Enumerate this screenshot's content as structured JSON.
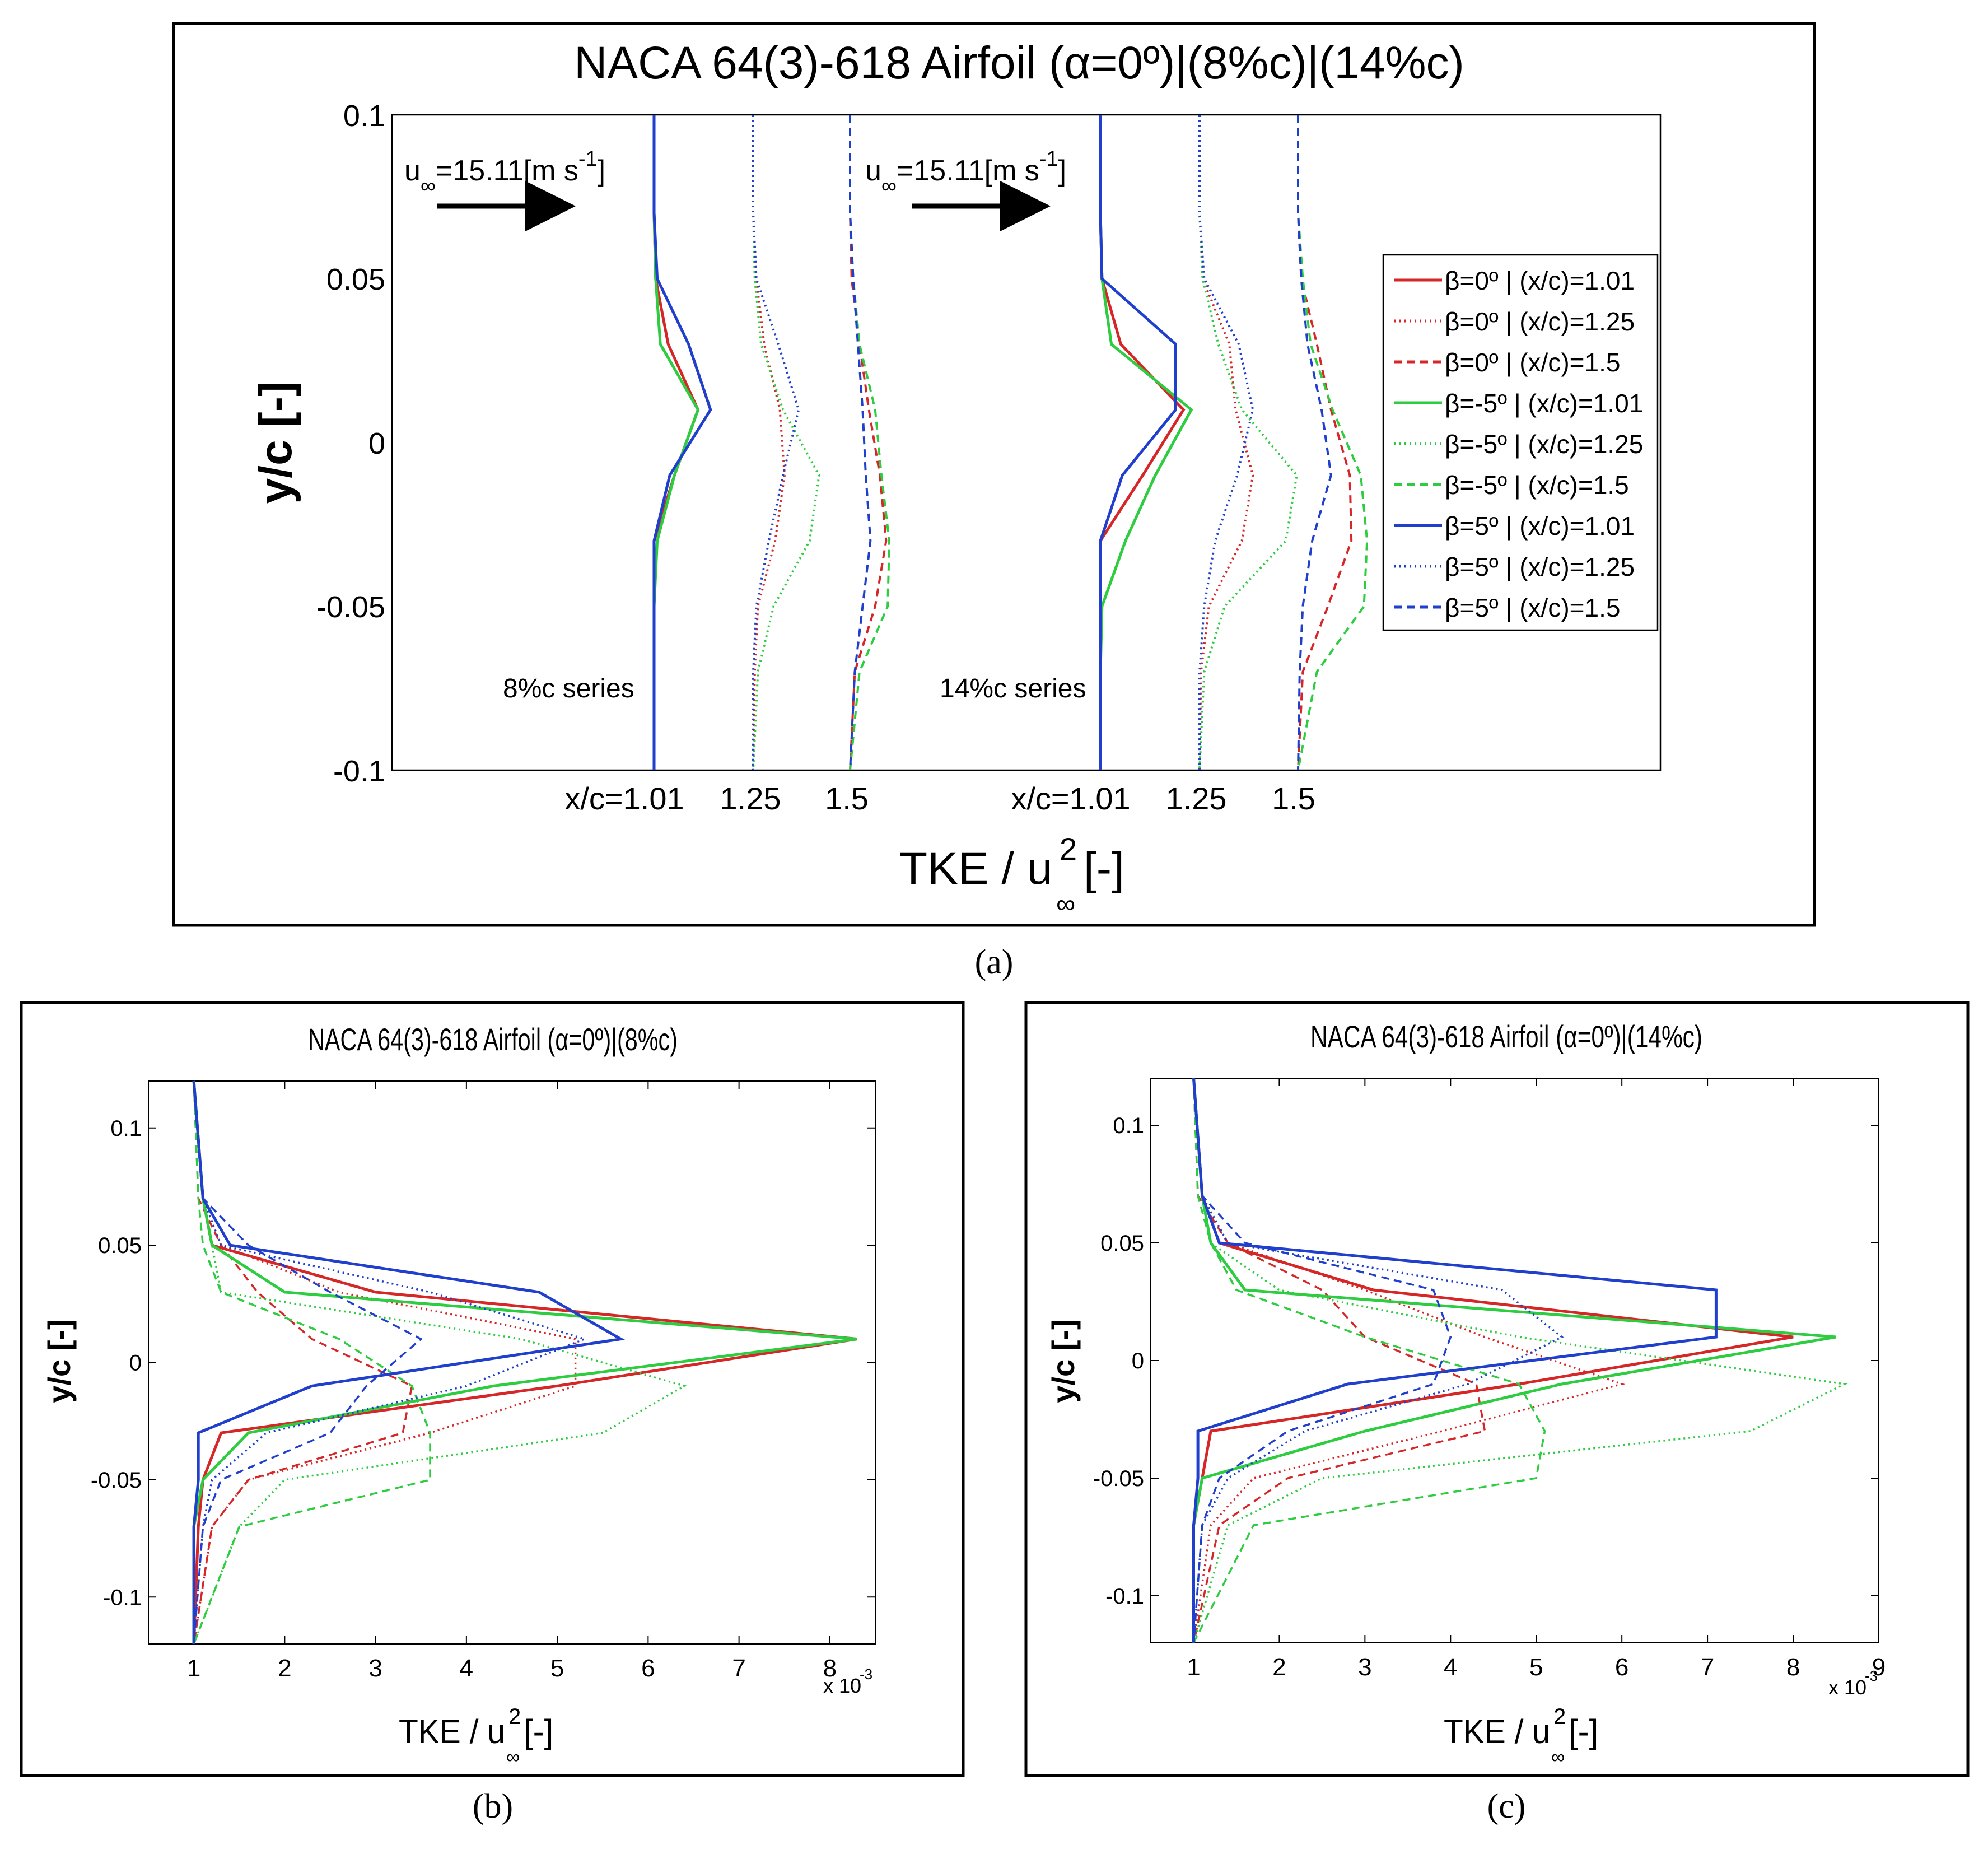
{
  "figure_labels": {
    "a": "(a)",
    "b": "(b)",
    "c": "(c)"
  },
  "legend_entries": [
    {
      "label": "β=0º | (x/c)=1.01",
      "color": "#d62728",
      "dash": "solid"
    },
    {
      "label": "β=0º | (x/c)=1.25",
      "color": "#d62728",
      "dash": "dot"
    },
    {
      "label": "β=0º | (x/c)=1.5",
      "color": "#d62728",
      "dash": "dash"
    },
    {
      "label": "β=-5º | (x/c)=1.01",
      "color": "#2ecc40",
      "dash": "solid"
    },
    {
      "label": "β=-5º | (x/c)=1.25",
      "color": "#2ecc40",
      "dash": "dot"
    },
    {
      "label": "β=-5º | (x/c)=1.5",
      "color": "#2ecc40",
      "dash": "dash"
    },
    {
      "label": "β=5º | (x/c)=1.01",
      "color": "#1f3fcc",
      "dash": "solid"
    },
    {
      "label": "β=5º | (x/c)=1.25",
      "color": "#1f3fcc",
      "dash": "dot"
    },
    {
      "label": "β=5º | (x/c)=1.5",
      "color": "#1f3fcc",
      "dash": "dash"
    }
  ],
  "chart_data": [
    {
      "id": "a",
      "type": "line",
      "title": "NACA 64(3)-618 Airfoil (α=0º)|(8%c)|(14%c)",
      "xlabel": "TKE / u",
      "xlabel_sup": "2",
      "xlabel_sub": "∞",
      "xlabel_suffix": " [-]",
      "ylabel": "y/c [-]",
      "ylim": [
        -0.1,
        0.1
      ],
      "yticks": [
        "0.1",
        "0.05",
        "0",
        "-0.05",
        "-0.1"
      ],
      "xticks": [
        "x/c=1.01",
        "1.25",
        "1.5",
        "x/c=1.01",
        "1.25",
        "1.5"
      ],
      "annotations": {
        "freestream": "u∞=15.11[m s-1]",
        "freestream_base": "u",
        "freestream_sub": "∞",
        "freestream_main": "=15.11[m s",
        "freestream_sup": "-1",
        "freestream_close": "]",
        "series_8": "8%c series",
        "series_14": "14%c series"
      },
      "y": [
        0.1,
        0.07,
        0.05,
        0.03,
        0.01,
        -0.01,
        -0.03,
        -0.05,
        -0.07,
        -0.1
      ],
      "series": [
        {
          "name": "β=0º | (x/c)=1.01 (8%c)",
          "values": [
            1,
            1,
            1.1,
            1.9,
            3.8,
            2.3,
            1.0,
            1.0,
            1.0,
            1.0
          ]
        },
        {
          "name": "β=0º | (x/c)=1.25 (8%c)",
          "values": [
            1,
            1,
            1.2,
            1.7,
            2.7,
            3.0,
            2.4,
            1.3,
            1.1,
            1.0
          ]
        },
        {
          "name": "β=0º | (x/c)=1.5 (8%c)",
          "values": [
            1,
            1,
            1.1,
            1.6,
            2.2,
            2.9,
            3.3,
            2.6,
            1.3,
            1.0
          ]
        },
        {
          "name": "β=-5º | (x/c)=1.01 (8%c)",
          "values": [
            1,
            1,
            1.1,
            1.4,
            3.8,
            2.3,
            1.2,
            1.0,
            1.0,
            1.0
          ]
        },
        {
          "name": "β=-5º | (x/c)=1.25 (8%c)",
          "values": [
            1,
            1,
            1.1,
            1.5,
            2.9,
            5.2,
            4.6,
            2.3,
            1.3,
            1.0
          ]
        },
        {
          "name": "β=-5º | (x/c)=1.5 (8%c)",
          "values": [
            1,
            1,
            1.2,
            1.6,
            2.6,
            3.0,
            3.5,
            3.4,
            1.6,
            1.0
          ]
        },
        {
          "name": "β=5º | (x/c)=1.01 (8%c)",
          "values": [
            1,
            1,
            1.2,
            3.2,
            4.6,
            2.0,
            1.0,
            1.0,
            1.0,
            1.0
          ]
        },
        {
          "name": "β=5º | (x/c)=1.25 (8%c)",
          "values": [
            1,
            1,
            1.2,
            2.6,
            3.9,
            2.9,
            2.0,
            1.2,
            1.0,
            1.0
          ]
        },
        {
          "name": "β=5º | (x/c)=1.5 (8%c)",
          "values": [
            1,
            1,
            1.2,
            1.5,
            1.8,
            2.0,
            2.3,
            1.8,
            1.3,
            1.0
          ]
        },
        {
          "name": "β=0º | (x/c)=1.01 (14%c)",
          "values": [
            1,
            1,
            1.1,
            2.3,
            6.3,
            3.7,
            1.0,
            1.0,
            1.0,
            1.0
          ]
        },
        {
          "name": "β=0º | (x/c)=1.25 (14%c)",
          "values": [
            1,
            1,
            1.2,
            2.9,
            3.3,
            4.4,
            3.7,
            1.6,
            1.1,
            1.0
          ]
        },
        {
          "name": "β=0º | (x/c)=1.5 (14%c)",
          "values": [
            1,
            1,
            1.2,
            2.2,
            3.1,
            4.3,
            4.4,
            2.9,
            1.3,
            1.0
          ]
        },
        {
          "name": "β=-5º | (x/c)=1.01 (14%c)",
          "values": [
            1,
            1,
            1.1,
            1.7,
            6.8,
            4.5,
            2.6,
            1.1,
            1.0,
            1.0
          ]
        },
        {
          "name": "β=-5º | (x/c)=1.25 (14%c)",
          "values": [
            1,
            1,
            1.2,
            2.2,
            3.7,
            7.2,
            6.5,
            2.6,
            1.3,
            1.0
          ]
        },
        {
          "name": "β=-5º | (x/c)=1.5 (14%c)",
          "values": [
            1,
            1,
            1.3,
            1.8,
            3.2,
            5.0,
            5.4,
            5.2,
            2.2,
            1.0
          ]
        },
        {
          "name": "β=5º | (x/c)=1.01 (14%c)",
          "values": [
            1,
            1,
            1.1,
            5.8,
            5.8,
            2.4,
            1.0,
            1.0,
            1.0,
            1.0
          ]
        },
        {
          "name": "β=5º | (x/c)=1.25 (14%c)",
          "values": [
            1,
            1,
            1.3,
            3.5,
            4.4,
            3.4,
            2.0,
            1.3,
            1.0,
            1.0
          ]
        },
        {
          "name": "β=5º | (x/c)=1.5 (14%c)",
          "values": [
            1,
            1,
            1.2,
            1.6,
            2.5,
            3.1,
            1.9,
            1.3,
            1.1,
            1.0
          ]
        }
      ]
    },
    {
      "id": "b",
      "type": "line",
      "title": "NACA 64(3)-618 Airfoil (α=0º)|(8%c)",
      "xlabel": "TKE / u",
      "xlabel_sup": "2",
      "xlabel_sub": "∞",
      "xlabel_suffix": " [-]",
      "ylabel": "y/c [-]",
      "xlim": [
        0.5,
        8.5
      ],
      "ylim": [
        -0.12,
        0.12
      ],
      "xticks": [
        1,
        2,
        3,
        4,
        5,
        6,
        7,
        8
      ],
      "yticks": [
        0.1,
        0.05,
        0,
        -0.05,
        -0.1
      ],
      "ytick_labels": [
        "0.1",
        "0.05",
        "0",
        "-0.05",
        "-0.1"
      ],
      "x_multiplier": "x 10",
      "x_multiplier_exp": "-3",
      "y": [
        0.12,
        0.07,
        0.05,
        0.03,
        0.01,
        -0.01,
        -0.03,
        -0.05,
        -0.07,
        -0.12
      ],
      "series": [
        {
          "name": "β=0º | (x/c)=1.01",
          "values": [
            1.0,
            1.1,
            1.2,
            3.0,
            8.3,
            5.0,
            1.3,
            1.1,
            1.05,
            1.0
          ]
        },
        {
          "name": "β=0º | (x/c)=1.25",
          "values": [
            1.0,
            1.1,
            1.3,
            2.6,
            5.2,
            5.2,
            3.6,
            1.6,
            1.2,
            1.0
          ]
        },
        {
          "name": "β=0º | (x/c)=1.5",
          "values": [
            1.0,
            1.05,
            1.3,
            1.7,
            2.3,
            3.4,
            3.3,
            1.6,
            1.2,
            1.0
          ]
        },
        {
          "name": "β=-5º | (x/c)=1.01",
          "values": [
            1.0,
            1.1,
            1.2,
            2.0,
            8.3,
            4.3,
            1.6,
            1.1,
            1.0,
            1.0
          ]
        },
        {
          "name": "β=-5º | (x/c)=1.25",
          "values": [
            1.0,
            1.1,
            1.2,
            1.3,
            4.6,
            6.4,
            5.5,
            2.0,
            1.5,
            1.0
          ]
        },
        {
          "name": "β=-5º | (x/c)=1.5",
          "values": [
            1.0,
            1.05,
            1.1,
            1.3,
            2.6,
            3.4,
            3.6,
            3.6,
            1.5,
            1.0
          ]
        },
        {
          "name": "β=5º | (x/c)=1.01",
          "values": [
            1.0,
            1.1,
            1.4,
            4.8,
            5.7,
            2.3,
            1.05,
            1.05,
            1.0,
            1.0
          ]
        },
        {
          "name": "β=5º | (x/c)=1.25",
          "values": [
            1.0,
            1.1,
            1.3,
            3.6,
            5.3,
            4.0,
            1.8,
            1.2,
            1.1,
            1.0
          ]
        },
        {
          "name": "β=5º | (x/c)=1.5",
          "values": [
            1.0,
            1.1,
            1.6,
            2.5,
            3.5,
            2.9,
            2.5,
            1.3,
            1.1,
            1.0
          ]
        }
      ]
    },
    {
      "id": "c",
      "type": "line",
      "title": "NACA 64(3)-618 Airfoil (α=0º)|(14%c)",
      "xlabel": "TKE / u",
      "xlabel_sup": "2",
      "xlabel_sub": "∞",
      "xlabel_suffix": " [-]",
      "ylabel": "y/c [-]",
      "xlim": [
        0.5,
        9.0
      ],
      "ylim": [
        -0.12,
        0.12
      ],
      "xticks": [
        1,
        2,
        3,
        4,
        5,
        6,
        7,
        8,
        9
      ],
      "yticks": [
        0.1,
        0.05,
        0,
        -0.05,
        -0.1
      ],
      "ytick_labels": [
        "0.1",
        "0.05",
        "0",
        "-0.05",
        "-0.1"
      ],
      "x_multiplier": "x 10",
      "x_multiplier_exp": "-3",
      "y": [
        0.12,
        0.07,
        0.05,
        0.03,
        0.01,
        -0.01,
        -0.03,
        -0.05,
        -0.07,
        -0.12
      ],
      "series": [
        {
          "name": "β=0º | (x/c)=1.01",
          "values": [
            1.0,
            1.1,
            1.3,
            3.1,
            8.0,
            4.8,
            1.2,
            1.1,
            1.0,
            1.0
          ]
        },
        {
          "name": "β=0º | (x/c)=1.25",
          "values": [
            1.0,
            1.1,
            1.4,
            3.0,
            4.4,
            6.0,
            3.9,
            1.7,
            1.2,
            1.0
          ]
        },
        {
          "name": "β=0º | (x/c)=1.5",
          "values": [
            1.0,
            1.05,
            1.4,
            2.5,
            3.0,
            4.3,
            4.4,
            2.1,
            1.3,
            1.0
          ]
        },
        {
          "name": "β=-5º | (x/c)=1.01",
          "values": [
            1.0,
            1.1,
            1.2,
            1.6,
            8.5,
            5.3,
            3.0,
            1.1,
            1.0,
            1.0
          ]
        },
        {
          "name": "β=-5º | (x/c)=1.25",
          "values": [
            1.0,
            1.1,
            1.2,
            2.0,
            4.8,
            8.6,
            7.5,
            2.5,
            1.4,
            1.0
          ]
        },
        {
          "name": "β=-5º | (x/c)=1.5",
          "values": [
            1.0,
            1.05,
            1.2,
            1.5,
            3.0,
            4.8,
            5.1,
            5.0,
            1.7,
            1.0
          ]
        },
        {
          "name": "β=5º | (x/c)=1.01",
          "values": [
            1.0,
            1.1,
            1.3,
            7.1,
            7.1,
            2.8,
            1.05,
            1.05,
            1.0,
            1.0
          ]
        },
        {
          "name": "β=5º | (x/c)=1.25",
          "values": [
            1.0,
            1.1,
            1.4,
            4.6,
            5.3,
            4.2,
            2.3,
            1.4,
            1.1,
            1.0
          ]
        },
        {
          "name": "β=5º | (x/c)=1.5",
          "values": [
            1.0,
            1.1,
            1.6,
            3.8,
            4.0,
            3.8,
            2.1,
            1.3,
            1.1,
            1.0
          ]
        }
      ]
    }
  ]
}
